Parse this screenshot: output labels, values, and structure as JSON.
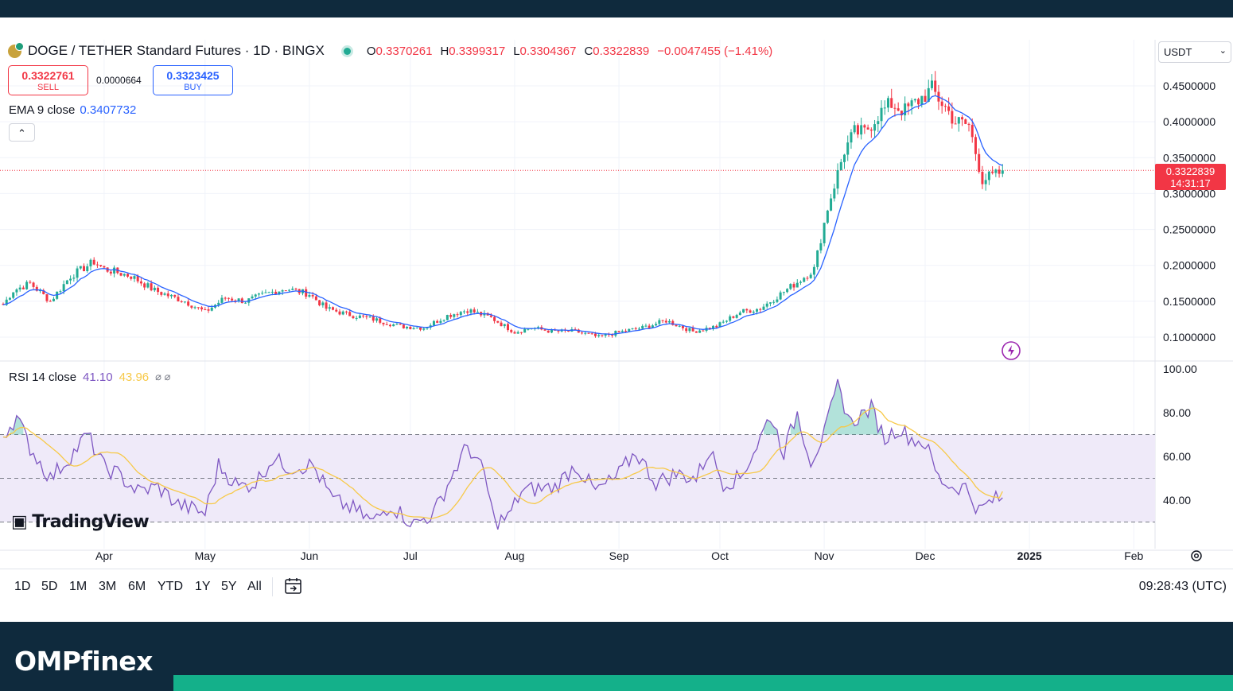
{
  "header": {
    "symbol": "DOGE / TETHER Standard Futures · 1D · BINGX",
    "ohlc": {
      "o_label": "O",
      "o": "0.3370261",
      "h_label": "H",
      "h": "0.3399317",
      "l_label": "L",
      "l": "0.3304367",
      "c_label": "C",
      "c": "0.3322839",
      "change": "−0.0047455 (−1.41%)"
    }
  },
  "trade": {
    "sell_price": "0.3322761",
    "sell_label": "SELL",
    "spread": "0.0000664",
    "buy_price": "0.3323425",
    "buy_label": "BUY"
  },
  "indicators": {
    "ema_label": "EMA 9 close",
    "ema_value": "0.3407732",
    "rsi_label": "RSI 14 close",
    "rsi_value": "41.10",
    "rsi_ma_value": "43.96",
    "rsi_extra": "⌀ ⌀"
  },
  "currency": "USDT",
  "last_price": {
    "value": "0.3322839",
    "countdown": "14:31:17"
  },
  "watermark": "TradingView",
  "range_buttons": [
    "1D",
    "5D",
    "1M",
    "3M",
    "6M",
    "YTD",
    "1Y",
    "5Y",
    "All"
  ],
  "clock": "09:28:43 (UTC)",
  "brand": "OMPfinex",
  "colors": {
    "up": "#22ab94",
    "down": "#f23645",
    "ema": "#2962ff",
    "rsi": "#7e57c2",
    "rsi_ma": "#f7c948",
    "rsi_band": "#efeaf9"
  },
  "chart_data": {
    "type": "candlestick",
    "title": "DOGE / TETHER Standard Futures · 1D · BINGX",
    "price_axis": {
      "ticks": [
        "0.4500000",
        "0.4000000",
        "0.3500000",
        "0.3000000",
        "0.2500000",
        "0.2000000",
        "0.1500000",
        "0.1000000"
      ],
      "range": [
        0.065,
        0.49
      ]
    },
    "rsi_axis": {
      "ticks": [
        "100.00",
        "80.00",
        "60.00",
        "40.00"
      ],
      "bands": [
        30,
        50,
        70
      ],
      "range": [
        15,
        100
      ]
    },
    "x_axis": {
      "labels": [
        "Apr",
        "May",
        "Jun",
        "Jul",
        "Aug",
        "Sep",
        "Oct",
        "Nov",
        "Dec",
        "2025",
        "Feb"
      ],
      "label_day_index": [
        30,
        60,
        91,
        121,
        152,
        183,
        213,
        244,
        274,
        305,
        336
      ]
    },
    "anchors": {
      "day": [
        0,
        3,
        8,
        14,
        20,
        27,
        30,
        34,
        38,
        45,
        49,
        54,
        60,
        66,
        72,
        78,
        84,
        91,
        96,
        102,
        110,
        118,
        125,
        132,
        138,
        145,
        152,
        157,
        163,
        170,
        177,
        183,
        190,
        197,
        205,
        212,
        219,
        225,
        231,
        237,
        241,
        245,
        250,
        253,
        256,
        260,
        264,
        268,
        272,
        276,
        280,
        283,
        287,
        291,
        295,
        297
      ],
      "price": [
        0.145,
        0.165,
        0.175,
        0.15,
        0.185,
        0.205,
        0.195,
        0.19,
        0.185,
        0.165,
        0.158,
        0.15,
        0.135,
        0.155,
        0.15,
        0.16,
        0.168,
        0.16,
        0.14,
        0.132,
        0.125,
        0.115,
        0.113,
        0.13,
        0.138,
        0.127,
        0.107,
        0.113,
        0.108,
        0.108,
        0.1,
        0.107,
        0.113,
        0.123,
        0.108,
        0.115,
        0.135,
        0.14,
        0.16,
        0.18,
        0.195,
        0.28,
        0.36,
        0.385,
        0.385,
        0.41,
        0.425,
        0.415,
        0.43,
        0.445,
        0.42,
        0.4,
        0.395,
        0.32,
        0.325,
        0.332
      ]
    },
    "rsi_anchors": {
      "day": [
        0,
        4,
        8,
        14,
        20,
        25,
        30,
        34,
        40,
        46,
        52,
        60,
        64,
        70,
        75,
        80,
        85,
        92,
        98,
        104,
        110,
        115,
        122,
        128,
        133,
        138,
        143,
        146,
        150,
        154,
        158,
        164,
        170,
        176,
        182,
        188,
        194,
        200,
        206,
        210,
        214,
        219,
        224,
        228,
        232,
        236,
        240,
        244,
        248,
        252,
        254,
        258,
        262,
        266,
        270,
        274,
        278,
        282,
        286,
        290,
        294,
        297
      ],
      "value": [
        70,
        78,
        64,
        50,
        60,
        70,
        55,
        52,
        44,
        46,
        38,
        34,
        56,
        46,
        48,
        59,
        55,
        56,
        40,
        36,
        30,
        38,
        29,
        34,
        50,
        65,
        52,
        30,
        32,
        44,
        45,
        46,
        56,
        44,
        50,
        62,
        48,
        52,
        50,
        63,
        48,
        50,
        65,
        79,
        62,
        80,
        58,
        70,
        92,
        75,
        78,
        82,
        68,
        73,
        68,
        66,
        50,
        46,
        46,
        35,
        40,
        41
      ]
    },
    "ema_value": 0.3407732,
    "last_price": 0.3322839,
    "rsi_value": 41.1,
    "rsi_ma_value": 43.96
  }
}
